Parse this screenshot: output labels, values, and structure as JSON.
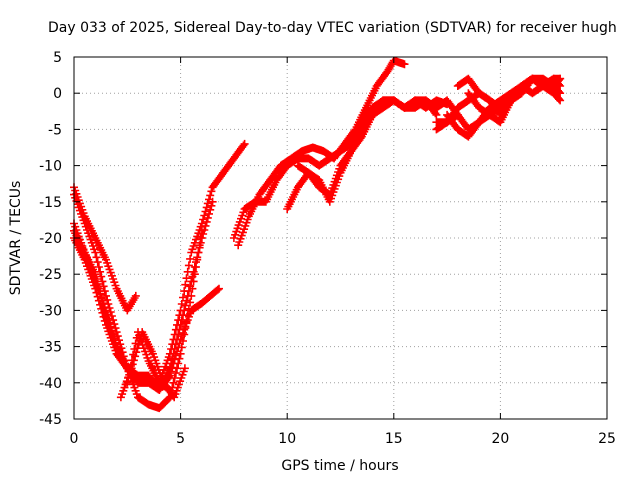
{
  "chart_data": {
    "type": "scatter",
    "title": "Day 033 of 2025, Sidereal Day-to-day VTEC variation (SDTVAR) for receiver hugh",
    "xlabel": "GPS time / hours",
    "ylabel": "SDTVAR / TECUs",
    "xlim": [
      0,
      25
    ],
    "ylim": [
      -45,
      5
    ],
    "xticks": [
      0,
      5,
      10,
      15,
      20,
      25
    ],
    "yticks": [
      5,
      0,
      -5,
      -10,
      -15,
      -20,
      -25,
      -30,
      -35,
      -40,
      -45
    ],
    "grid": true,
    "marker": "+",
    "color": "#ff0000",
    "series": [
      {
        "x": [
          0,
          0.5,
          1,
          1.5,
          2,
          2.5,
          3,
          3.5,
          4,
          4.5,
          5,
          5.5,
          6
        ],
        "y": [
          -14,
          -18,
          -22,
          -28,
          -33,
          -38,
          -42,
          -43,
          -43.5,
          -42,
          -36,
          -28,
          -19
        ]
      },
      {
        "x": [
          0,
          0.5,
          1,
          1.5,
          2,
          2.5,
          2.9
        ],
        "y": [
          -13,
          -17,
          -20,
          -23,
          -27,
          -30,
          -28
        ]
      },
      {
        "x": [
          0,
          0.5,
          1,
          1.5,
          2,
          2.5,
          3,
          3.5,
          4,
          4.5,
          5,
          5.5,
          6,
          6.5,
          7,
          7.5,
          8
        ],
        "y": [
          -19,
          -22,
          -26,
          -30,
          -35,
          -38,
          -40,
          -40,
          -40,
          -36,
          -30,
          -22,
          -18,
          -13,
          -11,
          -9,
          -7
        ]
      },
      {
        "x": [
          0,
          0.5,
          1,
          1.5,
          2,
          2.5,
          3,
          3.5,
          4,
          4.5,
          5,
          5.5,
          6,
          6.5
        ],
        "y": [
          -20,
          -23,
          -27,
          -32,
          -36,
          -38,
          -39,
          -39,
          -41,
          -38,
          -32,
          -26,
          -20,
          -15
        ]
      },
      {
        "x": [
          0,
          0.5,
          1,
          1.5,
          2,
          2.5,
          3,
          3.5,
          4,
          4.5,
          5,
          5.5,
          6,
          6.8
        ],
        "y": [
          -18,
          -22,
          -25,
          -31,
          -35,
          -38,
          -40,
          -40,
          -41,
          -39,
          -34,
          -30,
          -29,
          -27
        ]
      },
      {
        "x": [
          2.2,
          2.7,
          3.2,
          3.7,
          4.2,
          4.7,
          5.2
        ],
        "y": [
          -42,
          -38,
          -33,
          -36,
          -40,
          -42,
          -38
        ]
      },
      {
        "x": [
          2.5,
          3,
          3.5,
          4,
          4.5
        ],
        "y": [
          -40,
          -33,
          -37,
          -40,
          -41
        ]
      },
      {
        "x": [
          7.7,
          8.2,
          8.7,
          9.2,
          9.7,
          10.2,
          10.7,
          11.2,
          11.7,
          12.2,
          12.7,
          13.2,
          13.7,
          14.2,
          14.7,
          15,
          15.5
        ],
        "y": [
          -21,
          -17,
          -14,
          -12,
          -10,
          -9,
          -8,
          -7.5,
          -8,
          -9,
          -7,
          -5,
          -2,
          1,
          3,
          4.5,
          4
        ]
      },
      {
        "x": [
          7.5,
          8,
          8.5,
          9,
          9.5,
          10,
          10.5,
          11,
          11.5,
          12,
          12.5,
          13,
          13.5,
          14,
          14.5,
          15,
          15.5,
          16,
          16.5,
          17,
          17.5
        ],
        "y": [
          -20,
          -16,
          -15,
          -15,
          -12,
          -10,
          -9,
          -9,
          -10,
          -9,
          -8,
          -7,
          -4,
          -2,
          -1,
          -1,
          -2,
          -1,
          -2,
          -1,
          -1.5
        ]
      },
      {
        "x": [
          10,
          10.5,
          11,
          11.5,
          12,
          12.5,
          13,
          13.5,
          14,
          14.5,
          15,
          15.5,
          16,
          16.5,
          17,
          17.5,
          18
        ],
        "y": [
          -16,
          -13,
          -11,
          -12,
          -15,
          -11,
          -8,
          -6,
          -3,
          -1,
          -1,
          -2,
          -1,
          -1,
          -2,
          -1,
          -3
        ]
      },
      {
        "x": [
          10.5,
          11,
          11.5,
          12,
          12.5,
          13,
          13.5,
          14,
          14.5,
          15,
          15.5,
          16,
          16.5,
          17
        ],
        "y": [
          -10,
          -11,
          -13,
          -14,
          -10,
          -8,
          -5,
          -3,
          -2,
          -1,
          -2,
          -2,
          -1,
          -3
        ]
      },
      {
        "x": [
          17,
          17.5,
          18,
          18.5,
          19,
          19.5,
          20,
          20.5,
          21,
          21.5,
          22,
          22.5,
          22.8
        ],
        "y": [
          -5,
          -4,
          -2,
          -1,
          0,
          -1,
          -2,
          -1,
          1,
          2,
          1,
          2,
          1
        ]
      },
      {
        "x": [
          17,
          17.5,
          18,
          18.5,
          19,
          19.5,
          20,
          20.5,
          21,
          21.5,
          22,
          22.5,
          22.8
        ],
        "y": [
          -4,
          -4,
          -3,
          -5,
          -4,
          -2,
          -1,
          0,
          1,
          2,
          2,
          1,
          0
        ]
      },
      {
        "x": [
          17.5,
          18,
          18.5,
          19,
          19.5,
          20,
          20.5,
          21,
          21.5,
          22,
          22.5,
          22.8
        ],
        "y": [
          -3,
          -5,
          -6,
          -4,
          -3,
          -2,
          -1,
          1,
          0,
          1,
          0,
          -1
        ]
      },
      {
        "x": [
          18,
          18.5,
          19,
          19.5,
          20,
          20.5,
          21,
          21.5,
          22,
          22.5,
          22.8
        ],
        "y": [
          1,
          2,
          0,
          -1,
          -3,
          -1,
          0,
          2,
          1,
          2,
          2
        ]
      },
      {
        "x": [
          18.5,
          19,
          19.5,
          20,
          20.5,
          21,
          21.5,
          22,
          22.5,
          22.8
        ],
        "y": [
          0,
          -2,
          -3,
          -4,
          -1,
          1,
          2,
          1,
          1,
          2
        ]
      }
    ]
  }
}
